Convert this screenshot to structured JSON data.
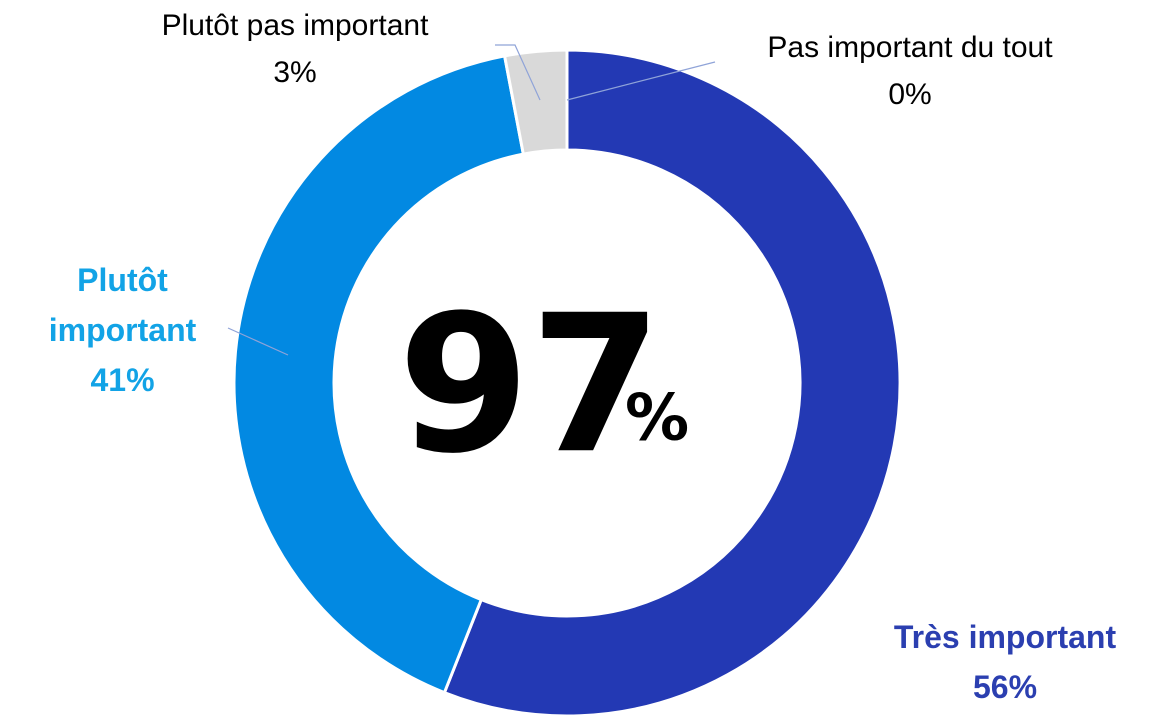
{
  "chart_data": {
    "type": "donut",
    "categories": [
      "Très important",
      "Plutôt important",
      "Plutôt pas important",
      "Pas important du tout"
    ],
    "values": [
      56,
      41,
      3,
      0
    ],
    "value_labels": [
      "56%",
      "41%",
      "3%",
      "0%"
    ],
    "colors": [
      "#2339b4",
      "#0289e2",
      "#d9d9d9",
      "#bfbfbf"
    ],
    "label_colors": [
      "#2b3fb0",
      "#12a3e6",
      "#000000",
      "#000000"
    ],
    "center_text": "97",
    "center_suffix": "%"
  }
}
